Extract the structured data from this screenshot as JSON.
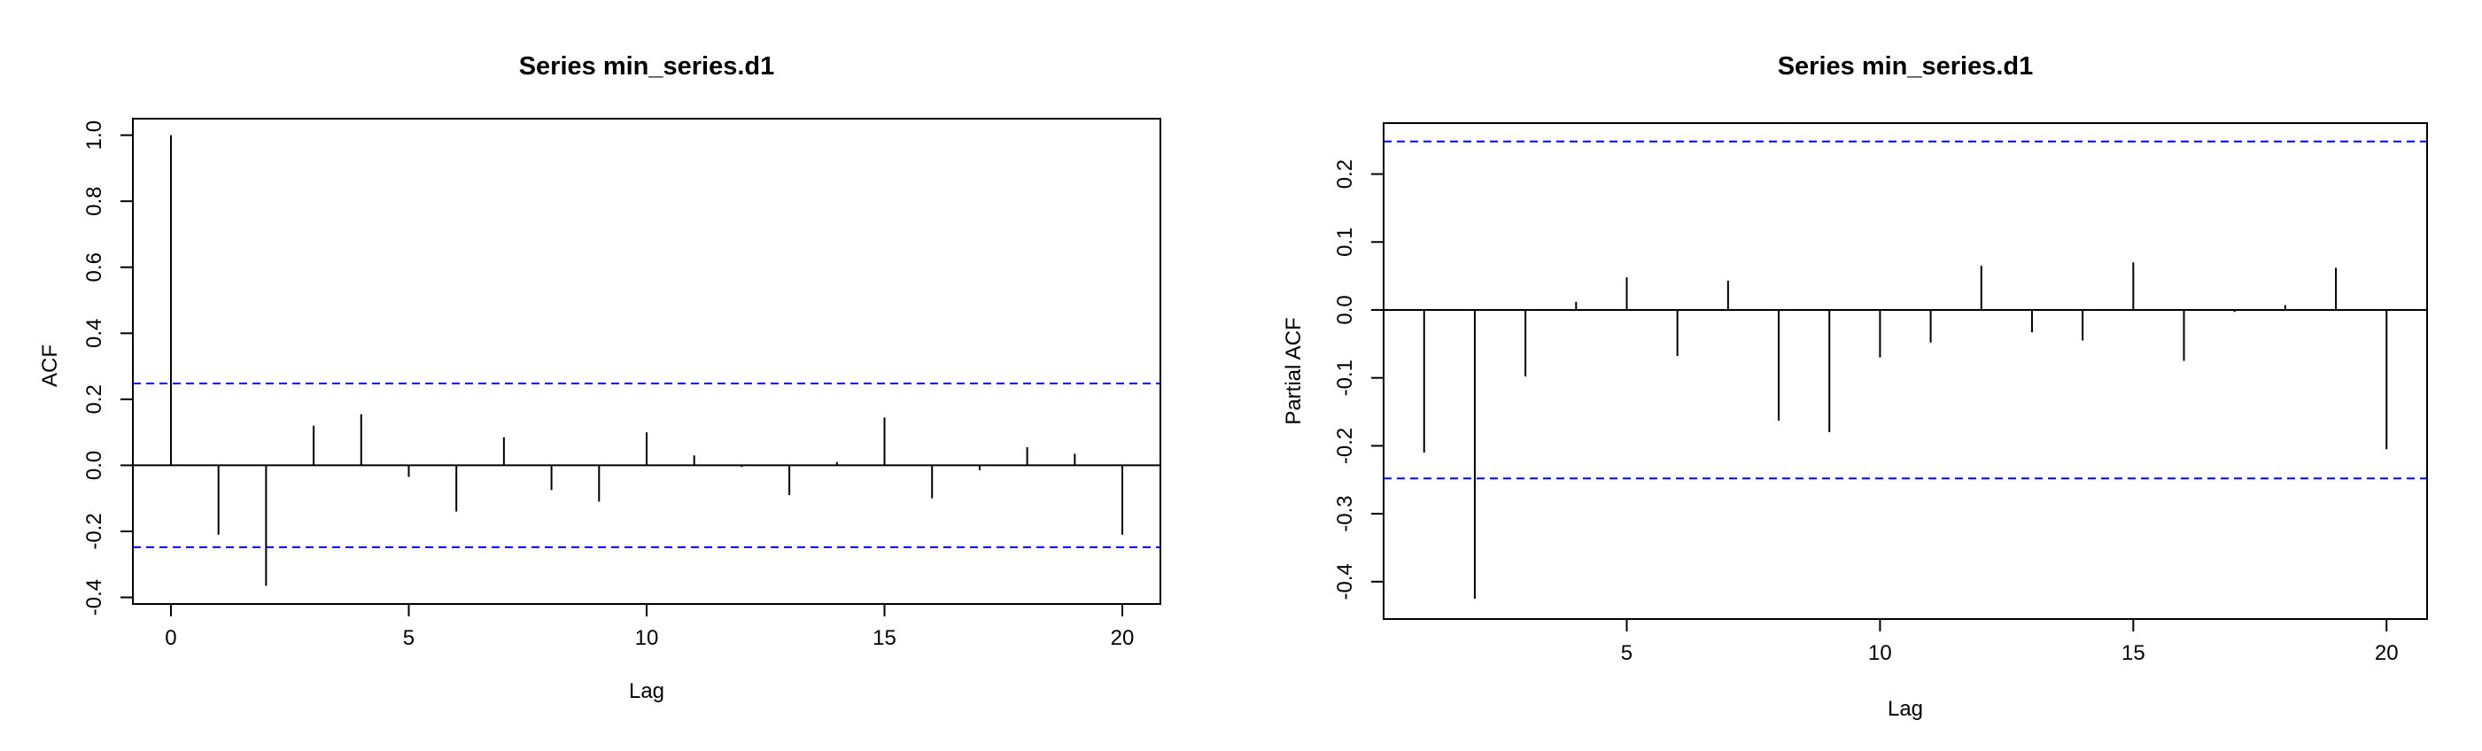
{
  "chart_data": [
    {
      "type": "bar",
      "title": "Series  min_series.d1",
      "xlabel": "Lag",
      "ylabel": "ACF",
      "x": [
        0,
        1,
        2,
        3,
        4,
        5,
        6,
        7,
        8,
        9,
        10,
        11,
        12,
        13,
        14,
        15,
        16,
        17,
        18,
        19,
        20
      ],
      "values": [
        1.0,
        -0.21,
        -0.365,
        0.12,
        0.155,
        -0.035,
        -0.14,
        0.085,
        -0.075,
        -0.11,
        0.1,
        0.03,
        -0.005,
        -0.09,
        0.01,
        0.145,
        -0.1,
        -0.015,
        0.055,
        0.035,
        -0.21
      ],
      "confidence_bound": 0.248,
      "xlim": [
        -0.8,
        20.8
      ],
      "ylim": [
        -0.42,
        1.05
      ],
      "xticks": [
        0,
        5,
        10,
        15,
        20
      ],
      "yticks": [
        -0.4,
        -0.2,
        0.0,
        0.2,
        0.4,
        0.6,
        0.8,
        1.0
      ],
      "xtick_labels": [
        "0",
        "5",
        "10",
        "15",
        "20"
      ],
      "ytick_labels": [
        "-0.4",
        "-0.2",
        "0.0",
        "0.2",
        "0.4",
        "0.6",
        "0.8",
        "1.0"
      ],
      "grid": false,
      "colors": {
        "bars": "#000000",
        "bounds": "#0000ff",
        "zero_line": "#000000"
      }
    },
    {
      "type": "bar",
      "title": "Series  min_series.d1",
      "xlabel": "Lag",
      "ylabel": "Partial ACF",
      "x": [
        1,
        2,
        3,
        4,
        5,
        6,
        7,
        8,
        9,
        10,
        11,
        12,
        13,
        14,
        15,
        16,
        17,
        18,
        19,
        20
      ],
      "values": [
        -0.21,
        -0.425,
        -0.098,
        0.012,
        0.048,
        -0.068,
        0.043,
        -0.163,
        -0.18,
        -0.07,
        -0.048,
        0.065,
        -0.033,
        -0.045,
        0.07,
        -0.075,
        -0.003,
        0.007,
        0.062,
        -0.205
      ],
      "confidence_bound": 0.248,
      "xlim": [
        0.2,
        20.8
      ],
      "ylim": [
        -0.455,
        0.275
      ],
      "xticks": [
        5,
        10,
        15,
        20
      ],
      "yticks": [
        -0.4,
        -0.3,
        -0.2,
        -0.1,
        0.0,
        0.1,
        0.2
      ],
      "xtick_labels": [
        "5",
        "10",
        "15",
        "20"
      ],
      "ytick_labels": [
        "-0.4",
        "-0.3",
        "-0.2",
        "-0.1",
        "0.0",
        "0.1",
        "0.2"
      ],
      "grid": false,
      "colors": {
        "bars": "#000000",
        "bounds": "#0000ff",
        "zero_line": "#000000"
      }
    }
  ]
}
